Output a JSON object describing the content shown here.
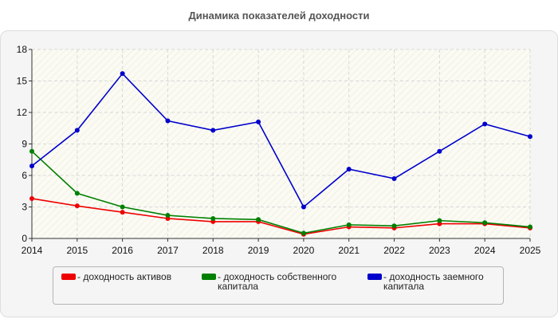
{
  "chart_data": {
    "type": "line",
    "title": "Динамика показателей доходности",
    "categories": [
      "2014",
      "2015",
      "2016",
      "2017",
      "2018",
      "2019",
      "2020",
      "2021",
      "2022",
      "2023",
      "2024",
      "2025"
    ],
    "ylim": [
      0,
      18
    ],
    "yticks": [
      0,
      3,
      6,
      9,
      12,
      15,
      18
    ],
    "grid": true,
    "legend_position": "bottom",
    "series": [
      {
        "name": "- доходность активов",
        "color": "#ee0000",
        "values": [
          3.8,
          3.1,
          2.5,
          1.9,
          1.6,
          1.6,
          0.4,
          1.1,
          1.0,
          1.4,
          1.4,
          1.0
        ]
      },
      {
        "name": "- доходность собственного капитала",
        "color": "#008000",
        "values": [
          8.3,
          4.3,
          3.0,
          2.2,
          1.9,
          1.8,
          0.5,
          1.3,
          1.2,
          1.7,
          1.5,
          1.1
        ]
      },
      {
        "name": "- доходность заемного капитала",
        "color": "#0000cc",
        "values": [
          6.9,
          10.3,
          15.7,
          11.2,
          10.3,
          11.1,
          3.0,
          6.6,
          5.7,
          8.3,
          10.9,
          9.7
        ]
      }
    ]
  }
}
